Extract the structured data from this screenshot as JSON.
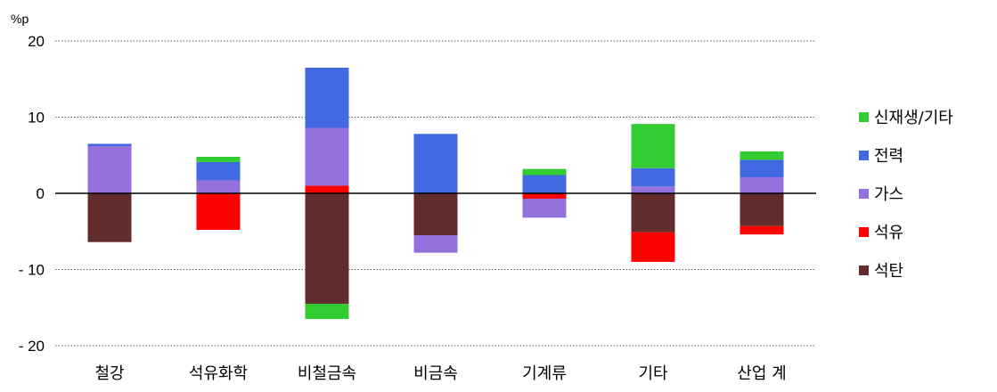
{
  "chart_data": {
    "type": "bar",
    "stacked": true,
    "unit": "%p",
    "ylim": [
      -20,
      20
    ],
    "yticks": [
      20,
      10,
      0,
      -10,
      -20
    ],
    "ytick_labels": [
      "20",
      "10",
      "0",
      "- 10",
      "- 20"
    ],
    "grid": "horizontal dotted",
    "legend_position": "right",
    "categories": [
      "철강",
      "석유화학",
      "비철금속",
      "비금속",
      "기계류",
      "기타",
      "산업 계"
    ],
    "series": [
      {
        "name": "석탄",
        "color": "#632D2D",
        "values": [
          -6.4,
          0,
          -14.5,
          -5.5,
          0,
          -5.1,
          -4.3
        ]
      },
      {
        "name": "석유",
        "color": "#FF0000",
        "values": [
          0,
          -4.8,
          1.0,
          0,
          -0.7,
          -3.9,
          -1.1
        ]
      },
      {
        "name": "가스",
        "color": "#9370DB",
        "values": [
          6.2,
          1.7,
          7.6,
          -2.3,
          -2.5,
          0.9,
          2.1
        ]
      },
      {
        "name": "전력",
        "color": "#4169E1",
        "values": [
          0.3,
          2.4,
          7.9,
          7.8,
          2.4,
          2.4,
          2.3
        ]
      },
      {
        "name": "신재생/기타",
        "color": "#33CC33",
        "values": [
          0,
          0.7,
          -2.0,
          0,
          0.8,
          5.8,
          1.1
        ]
      }
    ],
    "legend_order": [
      "신재생/기타",
      "전력",
      "가스",
      "석유",
      "석탄"
    ]
  }
}
